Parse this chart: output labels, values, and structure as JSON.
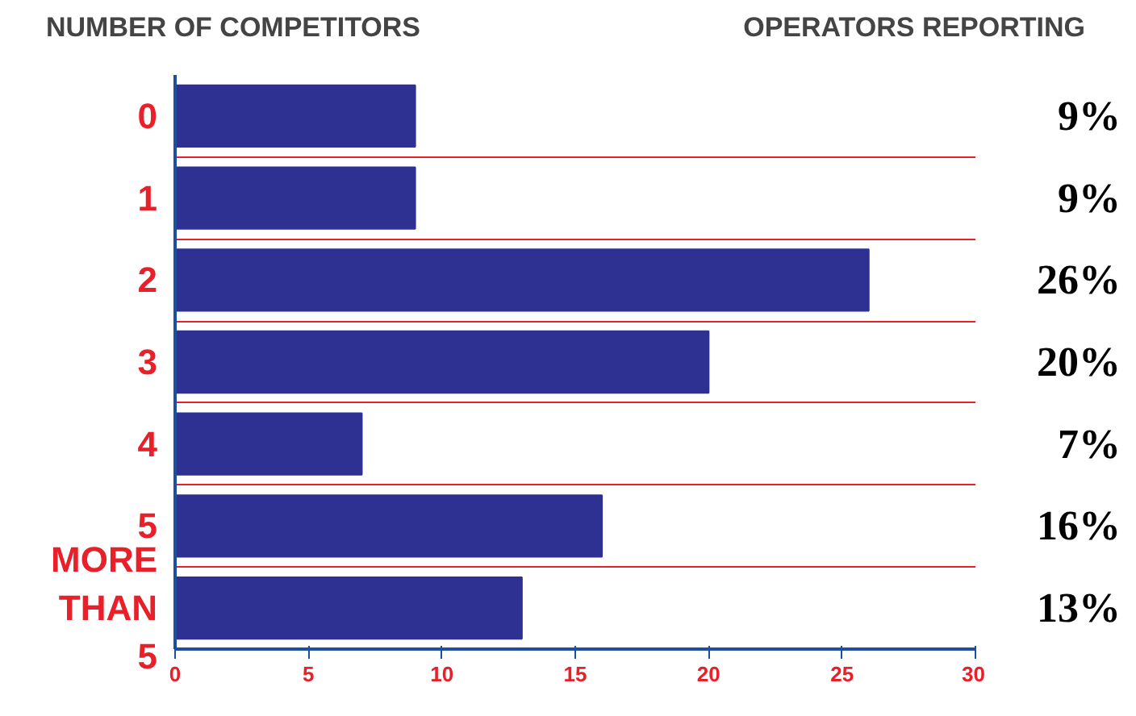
{
  "chart_data": {
    "type": "bar",
    "orientation": "horizontal",
    "ylabel": "NUMBER OF COMPETITORS",
    "annotations": [
      "OPERATORS REPORTING"
    ],
    "categories": [
      "0",
      "1",
      "2",
      "3",
      "4",
      "5",
      "MORE THAN 5"
    ],
    "values": [
      9,
      9,
      26,
      20,
      7,
      16,
      13
    ],
    "value_labels": [
      "9%",
      "9%",
      "26%",
      "20%",
      "7%",
      "16%",
      "13%"
    ],
    "color": "#2e3192",
    "xlim": [
      0,
      30
    ],
    "xticks": [
      0,
      5,
      10,
      15,
      20,
      25,
      30
    ],
    "grid": "y"
  }
}
